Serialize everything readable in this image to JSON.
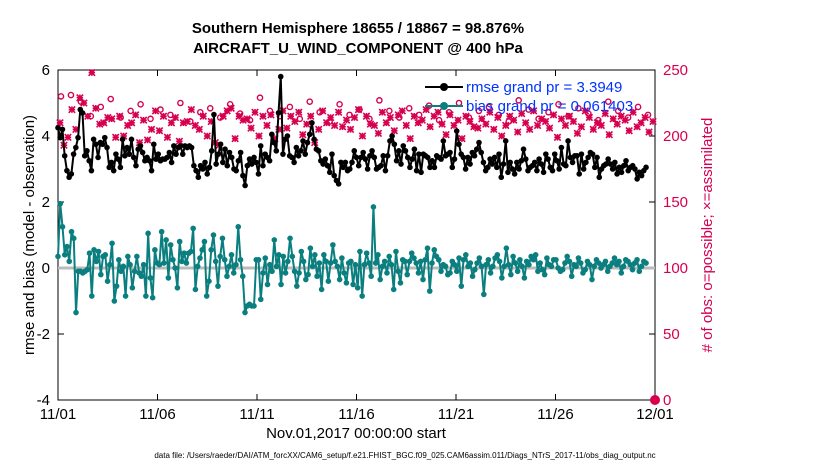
{
  "chart_data": {
    "type": "line",
    "title_line1": "Southern Hemisphere 18655 / 18867 = 98.876%",
    "title_line2": "AIRCRAFT_U_WIND_COMPONENT @ 400 hPa",
    "xlabel": "Nov.01,2017 00:00:00 start",
    "ylabel_left": "rmse and bias (model - observation)",
    "ylabel_right": "# of obs: o=possible; ×=assimilated",
    "footer": "data file: /Users/raeder/DAI/ATM_forcXX/CAM6_setup/f.e21.FHIST_BGC.f09_025.CAM6assim.011/Diags_NTrS_2017-11/obs_diag_output.nc",
    "x_ticks": [
      "11/01",
      "11/06",
      "11/11",
      "11/16",
      "11/21",
      "11/26",
      "12/01"
    ],
    "x_range": [
      0,
      30
    ],
    "y_left_range": [
      -4,
      6
    ],
    "y_left_ticks": [
      "-4",
      "-2",
      "0",
      "2",
      "4",
      "6"
    ],
    "y_right_range": [
      0,
      250
    ],
    "y_right_ticks": [
      "0",
      "50",
      "100",
      "150",
      "200",
      "250"
    ],
    "zero_line": 0,
    "legend_rmse": "rmse grand pr = 3.3949",
    "legend_bias": "bias grand pr = 0.061403",
    "colors": {
      "rmse": "#000000",
      "bias": "#0b7f7f",
      "obs": "#d6004f",
      "legend_text": "#0033ff",
      "zero": "#bbbbbb"
    },
    "series": [
      {
        "name": "rmse",
        "values": [
          4.25,
          3.95,
          4.2,
          3.4,
          2.95,
          2.75,
          2.85,
          3.45,
          3.65,
          3.95,
          4.8,
          4.7,
          3.4,
          3.55,
          3.25,
          2.95,
          3.9,
          3.75,
          3.35,
          3.8,
          3.75,
          3.95,
          3.65,
          3.05,
          3.2,
          2.95,
          3.45,
          3.3,
          3.05,
          3.9,
          3.4,
          3.65,
          3.45,
          3.9,
          3.35,
          3.1,
          3.6,
          3.7,
          3.5,
          3.25,
          3.35,
          3.25,
          2.95,
          3.75,
          3.3,
          3.45,
          3.25,
          3.3,
          3.3,
          3.35,
          3.5,
          3.2,
          3.7,
          3.45,
          3.65,
          3.7,
          3.45,
          3.7,
          3.65,
          3.7,
          3.65,
          3.1,
          2.95,
          2.75,
          3.1,
          3.0,
          3.2,
          2.85,
          3.05,
          3.55,
          4.65,
          3.15,
          3.45,
          3.75,
          3.2,
          3.6,
          3.1,
          3.5,
          3.35,
          3.0,
          2.95,
          3.25,
          3.5,
          2.8,
          2.5,
          3.1,
          3.3,
          3.15,
          3.35,
          3.2,
          2.85,
          3.7,
          3.1,
          3.45,
          3.35,
          3.25,
          4.05,
          3.8,
          3.55,
          4.7,
          5.8,
          3.45,
          3.9,
          4.0,
          3.4,
          3.35,
          3.2,
          3.65,
          3.4,
          3.55,
          3.85,
          3.45,
          3.8,
          4.05,
          4.4,
          3.9,
          3.6,
          3.55,
          3.25,
          3.15,
          3.3,
          3.1,
          2.9,
          3.45,
          2.8,
          2.65,
          2.55,
          3.2,
          3.05,
          3.2,
          2.95,
          3.0,
          3.2,
          3.55,
          3.35,
          3.1,
          3.35,
          3.5,
          3.3,
          3.0,
          3.4,
          3.55,
          3.35,
          3.0,
          3.05,
          3.1,
          3.4,
          2.95,
          3.4,
          3.85,
          4.0,
          3.75,
          3.25,
          3.55,
          3.15,
          3.7,
          3.55,
          3.35,
          3.05,
          3.3,
          3.6,
          2.95,
          3.45,
          2.9,
          3.45,
          3.4,
          3.35,
          3.05,
          3.25,
          3.05,
          3.4,
          3.35,
          3.3,
          3.85,
          3.4,
          3.45,
          3.5,
          3.05,
          3.3,
          4.15,
          3.75,
          3.45,
          3.35,
          3.0,
          3.35,
          3.15,
          3.5,
          3.4,
          3.6,
          3.8,
          3.5,
          3.2,
          2.95,
          3.05,
          3.3,
          3.15,
          3.35,
          3.05,
          3.45,
          2.75,
          3.15,
          3.85,
          2.9,
          3.2,
          3.0,
          2.85,
          3.2,
          3.0,
          3.25,
          3.6,
          3.3,
          2.95,
          3.05,
          3.1,
          3.2,
          2.95,
          3.3,
          3.15,
          2.9,
          3.45,
          3.3,
          3.05,
          2.95,
          3.45,
          3.25,
          3.0,
          3.65,
          3.15,
          3.1,
          3.85,
          3.35,
          3.2,
          3.4,
          3.4,
          2.85,
          3.45,
          3.0,
          3.2,
          3.35,
          3.5,
          3.45,
          3.05,
          3.35,
          2.75,
          3.0,
          3.1,
          3.15,
          3.3,
          3.15,
          3.0,
          3.2,
          2.85,
          3.05,
          2.9,
          3.1,
          3.25,
          2.95,
          3.05,
          3.1,
          3.0,
          2.7,
          2.9,
          2.8,
          2.95,
          3.05
        ]
      },
      {
        "name": "bias",
        "values": [
          0.35,
          1.95,
          1.25,
          0.4,
          0.65,
          0.2,
          1.1,
          0.9,
          -1.35,
          -0.1,
          -0.1,
          -0.15,
          -0.1,
          -0.05,
          0.45,
          -0.85,
          0.55,
          0.2,
          0.5,
          -0.2,
          0.35,
          0.4,
          -0.4,
          0.1,
          0.75,
          -1.0,
          -0.55,
          0.25,
          -0.1,
          0.05,
          -0.85,
          0.35,
          0.1,
          -0.6,
          -0.1,
          0.35,
          -0.15,
          -0.25,
          0.1,
          -0.85,
          1.05,
          -0.3,
          -0.9,
          0.55,
          0.15,
          0.1,
          1.1,
          0.15,
          0.85,
          -0.3,
          0.7,
          0.25,
          0.0,
          -0.6,
          0.8,
          0.2,
          0.45,
          0.15,
          0.45,
          0.5,
          1.2,
          -0.65,
          0.05,
          0.3,
          0.55,
          0.8,
          -0.85,
          -0.4,
          0.55,
          1.0,
          0.2,
          -0.55,
          0.35,
          0.9,
          0.25,
          -0.25,
          0.05,
          0.4,
          -0.15,
          0.1,
          1.25,
          0.25,
          -0.25,
          -1.35,
          -1.15,
          -1.1,
          -1.15,
          -1.15,
          0.25,
          0.25,
          -0.95,
          -0.15,
          0.3,
          -0.5,
          0.1,
          -0.1,
          0.85,
          0.05,
          0.4,
          -0.5,
          0.35,
          -0.15,
          0.2,
          0.9,
          0.35,
          -0.1,
          -0.55,
          -0.15,
          0.5,
          0.2,
          -0.35,
          -0.2,
          0.6,
          0.05,
          0.4,
          -0.25,
          0.15,
          -0.65,
          0.4,
          0.2,
          -0.4,
          0.15,
          0.7,
          0.2,
          0.05,
          -0.35,
          0.3,
          -0.15,
          -0.45,
          0.15,
          0.2,
          -0.5,
          0.1,
          -0.6,
          0.5,
          -0.85,
          0.1,
          0.45,
          0.15,
          -0.25,
          1.85,
          0.15,
          0.4,
          -0.35,
          0.05,
          0.2,
          -0.15,
          0.35,
          0.1,
          -0.65,
          0.5,
          -0.1,
          -0.45,
          0.25,
          0.2,
          -0.2,
          0.2,
          0.45,
          0.3,
          0.15,
          -0.15,
          0.2,
          -0.35,
          0.25,
          0.6,
          -0.7,
          0.15,
          0.55,
          0.35,
          0.25,
          -0.1,
          0.1,
          0.05,
          -0.2,
          -0.15,
          0.2,
          0.1,
          -0.1,
          0.3,
          -0.55,
          0.25,
          0.4,
          0.05,
          0.15,
          -0.25,
          -0.05,
          0.15,
          0.3,
          0.05,
          -0.8,
          0.1,
          0.25,
          -0.15,
          0.05,
          0.3,
          0.4,
          0.2,
          -0.3,
          0.05,
          0.6,
          0.1,
          -0.2,
          0.35,
          0.15,
          -0.1,
          0.25,
          0.05,
          -0.3,
          0.2,
          0.1,
          0.35,
          0.25,
          0.4,
          -0.1,
          0.15,
          -0.05,
          -0.2,
          0.3,
          0.1,
          0.05,
          0.25,
          0.25,
          0.0,
          -0.1,
          -0.05,
          0.15,
          0.35,
          0.2,
          -0.25,
          0.1,
          0.05,
          0.3,
          0.15,
          -0.15,
          -0.05,
          0.2,
          0.1,
          -0.35,
          0.05,
          0.25,
          0.15,
          0.0,
          0.1,
          0.2,
          -0.1,
          0.05,
          0.15,
          0.3,
          0.1,
          0.2,
          -0.15,
          0.05,
          0.25,
          0.2,
          0.1,
          -0.05,
          0.15,
          0.25,
          -0.1,
          0.05,
          0.2,
          0.15
        ]
      },
      {
        "name": "obs_assimilated",
        "values": [
          210,
          193,
          199,
          220,
          205,
          229,
          225,
          215,
          248,
          221,
          209,
          210,
          214,
          213,
          199,
          215,
          200,
          208,
          210,
          216,
          195,
          212,
          197,
          205,
          219,
          204,
          215,
          199,
          210,
          214,
          196,
          210,
          211,
          220,
          208,
          205,
          215,
          200,
          211,
          195,
          193,
          215,
          219,
          221,
          198,
          215,
          212,
          213,
          206,
          218,
          200,
          215,
          208,
          216,
          198,
          205,
          219,
          206,
          215,
          211,
          218,
          201,
          209,
          215,
          195,
          205,
          219,
          210,
          214,
          208,
          218,
          207,
          212,
          205,
          214,
          220,
          200,
          215,
          209,
          208,
          202,
          218,
          210,
          214,
          204,
          216,
          219,
          208,
          198,
          215,
          210,
          212,
          220,
          207,
          215,
          218,
          209,
          201,
          216,
          208,
          212,
          198,
          215,
          211,
          207,
          206,
          213,
          209,
          218,
          205,
          214,
          200,
          208,
          215,
          212,
          203,
          217,
          210,
          205,
          219,
          208,
          213,
          211,
          206,
          216,
          199,
          213,
          208,
          215,
          211,
          202,
          207,
          219,
          214,
          205,
          210,
          208,
          217,
          201,
          213,
          209,
          215,
          212,
          204,
          218,
          207,
          210,
          214,
          203,
          211
        ]
      },
      {
        "name": "obs_possible",
        "values": [
          230,
          231,
          226,
          215,
          222,
          228,
          214,
          219,
          224,
          213,
          220,
          216,
          225,
          211,
          218,
          221,
          214,
          224,
          217,
          212,
          229,
          219,
          215,
          222,
          213,
          226,
          218,
          211,
          224,
          216,
          220,
          213,
          227,
          219,
          214,
          221,
          216,
          223,
          212,
          218,
          225,
          214,
          219,
          222,
          216,
          211,
          227,
          220,
          213,
          218,
          224,
          215,
          221,
          217,
          212,
          226,
          219,
          214,
          222,
          216
        ]
      }
    ]
  }
}
